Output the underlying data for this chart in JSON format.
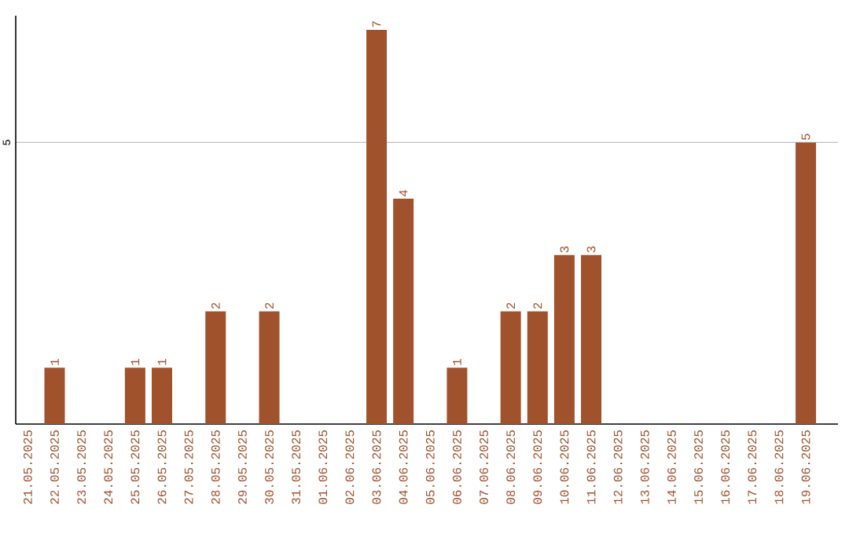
{
  "chart_data": {
    "type": "bar",
    "categories": [
      "21.05.2025",
      "22.05.2025",
      "23.05.2025",
      "24.05.2025",
      "25.05.2025",
      "26.05.2025",
      "27.05.2025",
      "28.05.2025",
      "29.05.2025",
      "30.05.2025",
      "31.05.2025",
      "01.06.2025",
      "02.06.2025",
      "03.06.2025",
      "04.06.2025",
      "05.06.2025",
      "06.06.2025",
      "07.06.2025",
      "08.06.2025",
      "09.06.2025",
      "10.06.2025",
      "11.06.2025",
      "12.06.2025",
      "13.06.2025",
      "14.06.2025",
      "15.06.2025",
      "16.06.2025",
      "17.06.2025",
      "18.06.2025",
      "19.06.2025"
    ],
    "values": [
      0,
      1,
      0,
      0,
      1,
      1,
      0,
      2,
      0,
      2,
      0,
      0,
      0,
      7,
      4,
      0,
      1,
      0,
      2,
      2,
      3,
      3,
      0,
      0,
      0,
      0,
      0,
      0,
      0,
      5
    ],
    "value_labels": [
      null,
      "1",
      null,
      null,
      "1",
      "1",
      null,
      "2",
      null,
      "2",
      null,
      null,
      null,
      "7",
      "4",
      null,
      "1",
      null,
      "2",
      "2",
      "3",
      "3",
      null,
      null,
      null,
      null,
      null,
      null,
      null,
      "5"
    ],
    "color": "#a0522d",
    "ylim": [
      0,
      7.25
    ],
    "yticks": [
      5
    ],
    "grid": "y"
  }
}
